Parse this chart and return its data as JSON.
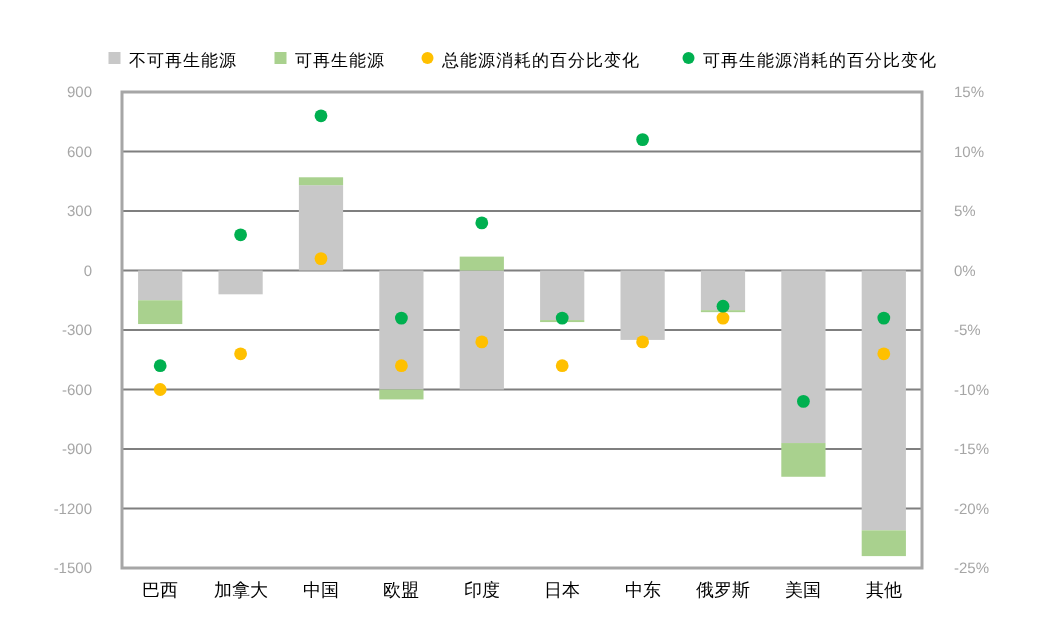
{
  "chart_data": {
    "type": "bar",
    "stacked": true,
    "categories": [
      "巴西",
      "加拿大",
      "中国",
      "欧盟",
      "印度",
      "日本",
      "中东",
      "俄罗斯",
      "美国",
      "其他"
    ],
    "series": [
      {
        "name": "不可再生能源",
        "color": "#c8c8c8",
        "values": [
          -150,
          -120,
          430,
          -600,
          -600,
          -250,
          -350,
          -200,
          -870,
          -1310
        ]
      },
      {
        "name": "可再生能源",
        "color": "#a9d18e",
        "values": [
          -120,
          0,
          40,
          -50,
          70,
          -10,
          0,
          -10,
          -170,
          -130
        ]
      },
      {
        "name": "总能源消耗的百分比变化",
        "type": "scatter",
        "axis": "y2",
        "color": "#ffc000",
        "x": [
          "巴西",
          "加拿大",
          "中国",
          "欧盟",
          "印度",
          "日本",
          "中东",
          "俄罗斯",
          "美国",
          "其他"
        ],
        "values": [
          -10,
          -7,
          1,
          -8,
          -6,
          -8,
          -6,
          -4,
          null,
          -7
        ]
      },
      {
        "name": "可再生能源消耗的百分比变化",
        "type": "scatter",
        "axis": "y2",
        "color": "#00b050",
        "x": [
          "巴西",
          "加拿大",
          "中国",
          "欧盟",
          "印度",
          "日本",
          "中东",
          "俄罗斯",
          "美国",
          "其他"
        ],
        "values": [
          -8,
          3,
          13,
          -4,
          4,
          -4,
          11,
          -3,
          -11,
          -4
        ]
      }
    ],
    "ylim": [
      -1500,
      900
    ],
    "yticks": [
      -1500,
      -1200,
      -900,
      -600,
      -300,
      0,
      300,
      600,
      900
    ],
    "y2lim": [
      -25,
      15
    ],
    "y2ticks": [
      {
        "value": -25,
        "label": "-25%"
      },
      {
        "value": -20,
        "label": "-20%"
      },
      {
        "value": -15,
        "label": "-15%"
      },
      {
        "value": -10,
        "label": "-10%"
      },
      {
        "value": -5,
        "label": "-5%"
      },
      {
        "value": 0,
        "label": "0%"
      },
      {
        "value": 5,
        "label": "5%"
      },
      {
        "value": 10,
        "label": "10%"
      },
      {
        "value": 15,
        "label": "15%"
      }
    ],
    "grid": "y",
    "legend": "top",
    "marker": "circle"
  }
}
